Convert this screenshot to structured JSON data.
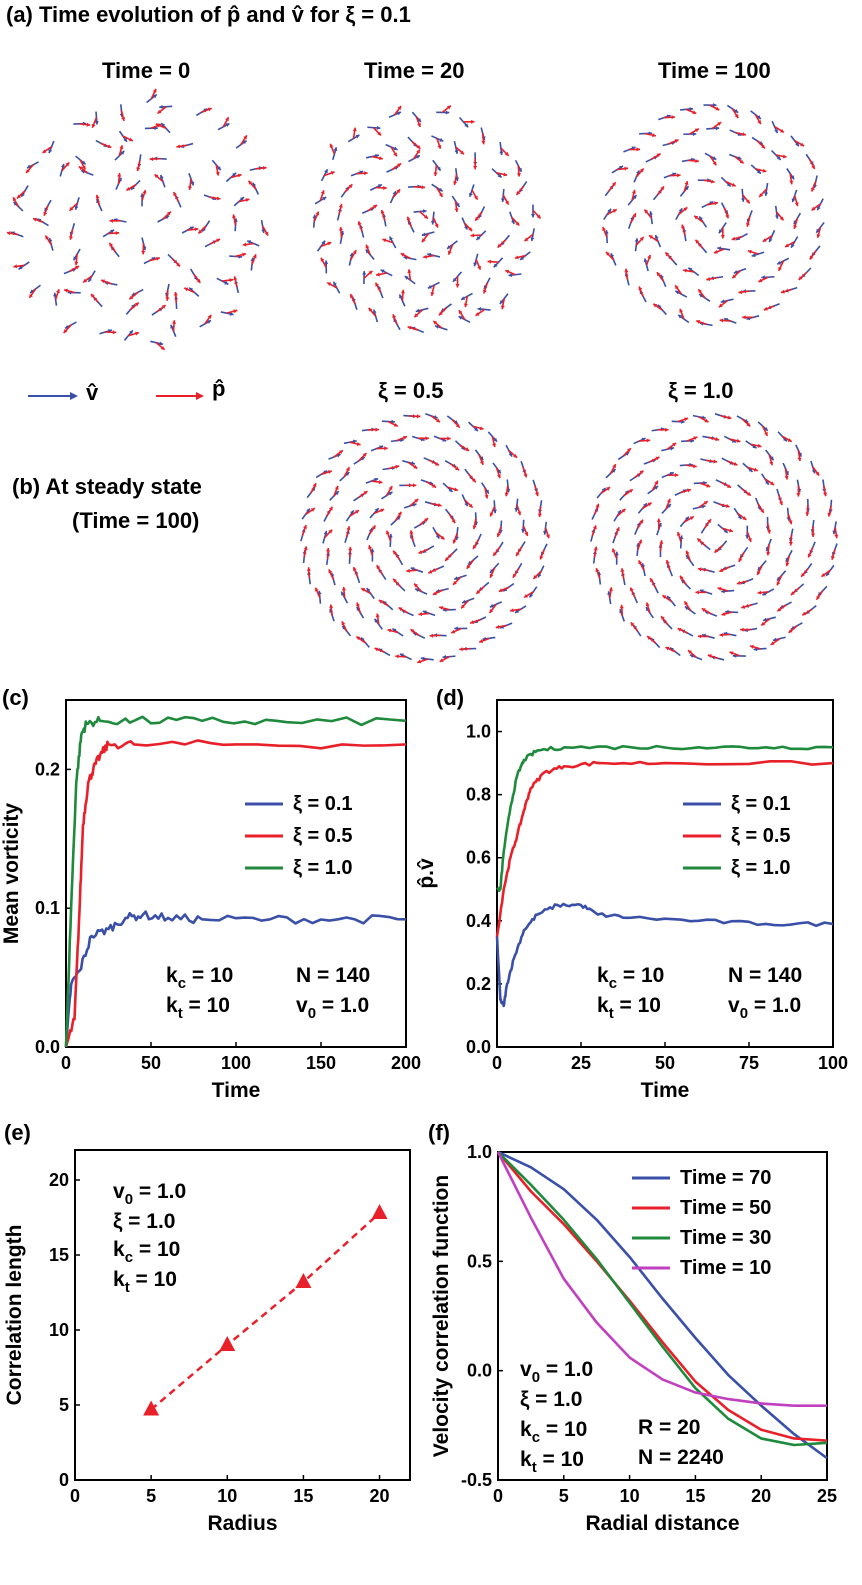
{
  "panel_a": {
    "title": "(a) Time evolution of p̂ and v̂ for ξ = 0.1",
    "times": [
      "Time = 0",
      "Time = 20",
      "Time = 100"
    ]
  },
  "legend_arrows": {
    "v": "v̂",
    "p": "p̂"
  },
  "panel_b": {
    "title_line1": "(b) At steady state",
    "title_line2": "(Time = 100)",
    "xi": [
      "ξ = 0.5",
      "ξ = 1.0"
    ]
  },
  "colors": {
    "blue": "#3a50a8",
    "red": "#e8202a",
    "green": "#1f8a3c",
    "magenta": "#c040c0"
  },
  "chart_data": [
    {
      "panel": "(c)",
      "type": "line",
      "xlabel": "Time",
      "ylabel": "Mean vorticity",
      "xlim": [
        0,
        200
      ],
      "ylim": [
        0,
        0.25
      ],
      "xticks": [
        "0",
        "50",
        "100",
        "150",
        "200"
      ],
      "yticks": [
        "0.0",
        "0.1",
        "0.2"
      ],
      "legend_position": "center-right",
      "series": [
        {
          "name": "ξ = 0.1",
          "color": "#3a50a8",
          "x": [
            0,
            3,
            8,
            15,
            25,
            35,
            45,
            60,
            80,
            120,
            160,
            200
          ],
          "y": [
            0.0,
            0.045,
            0.055,
            0.08,
            0.085,
            0.093,
            0.095,
            0.093,
            0.092,
            0.092,
            0.092,
            0.092
          ]
        },
        {
          "name": "ξ = 0.5",
          "color": "#e8202a",
          "x": [
            0,
            5,
            8,
            10,
            13,
            16,
            20,
            25,
            40,
            100,
            200
          ],
          "y": [
            0.0,
            0.02,
            0.1,
            0.16,
            0.19,
            0.2,
            0.21,
            0.218,
            0.218,
            0.218,
            0.218
          ]
        },
        {
          "name": "ξ = 1.0",
          "color": "#1f8a3c",
          "x": [
            0,
            3,
            6,
            9,
            12,
            20,
            40,
            80,
            130,
            200
          ],
          "y": [
            0.0,
            0.1,
            0.19,
            0.225,
            0.233,
            0.235,
            0.235,
            0.235,
            0.234,
            0.235
          ]
        }
      ],
      "annotations": [
        "k_c = 10",
        "k_t = 10",
        "N = 140",
        "v_0 = 1.0"
      ]
    },
    {
      "panel": "(d)",
      "type": "line",
      "xlabel": "Time",
      "ylabel": "p̂.v̂",
      "xlim": [
        0,
        100
      ],
      "ylim": [
        0,
        1.1
      ],
      "xticks": [
        "0",
        "25",
        "50",
        "75",
        "100"
      ],
      "yticks": [
        "0.0",
        "0.2",
        "0.4",
        "0.6",
        "0.8",
        "1.0"
      ],
      "legend_position": "center-right",
      "series": [
        {
          "name": "ξ = 0.1",
          "color": "#3a50a8",
          "x": [
            0,
            1,
            2,
            3,
            5,
            8,
            12,
            18,
            25,
            30,
            40,
            60,
            80,
            100
          ],
          "y": [
            0.35,
            0.15,
            0.13,
            0.2,
            0.28,
            0.37,
            0.42,
            0.45,
            0.45,
            0.42,
            0.41,
            0.4,
            0.39,
            0.39
          ]
        },
        {
          "name": "ξ = 0.5",
          "color": "#e8202a",
          "x": [
            0,
            2,
            4,
            6,
            8,
            10,
            14,
            20,
            30,
            50,
            100
          ],
          "y": [
            0.35,
            0.5,
            0.6,
            0.67,
            0.75,
            0.82,
            0.87,
            0.89,
            0.9,
            0.9,
            0.9
          ]
        },
        {
          "name": "ξ = 1.0",
          "color": "#1f8a3c",
          "x": [
            0,
            1,
            2,
            4,
            6,
            8,
            12,
            20,
            40,
            60,
            80,
            100
          ],
          "y": [
            0.5,
            0.5,
            0.62,
            0.76,
            0.86,
            0.91,
            0.94,
            0.95,
            0.95,
            0.95,
            0.95,
            0.95
          ]
        }
      ],
      "annotations": [
        "k_c = 10",
        "k_t = 10",
        "N = 140",
        "v_0 = 1.0"
      ]
    },
    {
      "panel": "(e)",
      "type": "scatter",
      "xlabel": "Radius",
      "ylabel": "Correlation length",
      "xlim": [
        0,
        22
      ],
      "ylim": [
        0,
        22
      ],
      "xticks": [
        "0",
        "5",
        "10",
        "15",
        "20"
      ],
      "yticks": [
        "0",
        "5",
        "10",
        "15",
        "20"
      ],
      "series": [
        {
          "color": "#e8202a",
          "x": [
            5,
            10,
            15,
            20
          ],
          "y": [
            4.7,
            9.0,
            13.2,
            17.8
          ]
        }
      ],
      "annotations": [
        "v_0 = 1.0",
        "ξ = 1.0",
        "k_c = 10",
        "k_t = 10"
      ]
    },
    {
      "panel": "(f)",
      "type": "line",
      "xlabel": "Radial distance",
      "ylabel": "Velocity correlation function",
      "xlim": [
        0,
        25
      ],
      "ylim": [
        -0.5,
        1.0
      ],
      "xticks": [
        "0",
        "5",
        "10",
        "15",
        "20",
        "25"
      ],
      "yticks": [
        "-0.5",
        "0.0",
        "0.5",
        "1.0"
      ],
      "legend_position": "top-right",
      "series": [
        {
          "name": "Time = 70",
          "color": "#3a50a8",
          "x": [
            0,
            2.5,
            5,
            7.5,
            10,
            12.5,
            15,
            17.5,
            20,
            22.5,
            25
          ],
          "y": [
            1.0,
            0.93,
            0.83,
            0.69,
            0.52,
            0.33,
            0.15,
            -0.02,
            -0.16,
            -0.29,
            -0.4
          ]
        },
        {
          "name": "Time = 50",
          "color": "#e8202a",
          "x": [
            0,
            2.5,
            5,
            7.5,
            10,
            12.5,
            15,
            17.5,
            20,
            22.5,
            25
          ],
          "y": [
            1.0,
            0.82,
            0.67,
            0.5,
            0.32,
            0.13,
            -0.05,
            -0.18,
            -0.27,
            -0.31,
            -0.32
          ]
        },
        {
          "name": "Time = 30",
          "color": "#1f8a3c",
          "x": [
            0,
            2.5,
            5,
            7.5,
            10,
            12.5,
            15,
            17.5,
            20,
            22.5,
            25
          ],
          "y": [
            1.0,
            0.85,
            0.69,
            0.51,
            0.31,
            0.11,
            -0.08,
            -0.22,
            -0.31,
            -0.34,
            -0.33
          ]
        },
        {
          "name": "Time = 10",
          "color": "#c040c0",
          "x": [
            0,
            2.5,
            5,
            7.5,
            10,
            12.5,
            15,
            17.5,
            20,
            22.5,
            25
          ],
          "y": [
            1.0,
            0.7,
            0.42,
            0.22,
            0.06,
            -0.04,
            -0.1,
            -0.13,
            -0.15,
            -0.16,
            -0.16
          ]
        }
      ],
      "annotations": [
        "v_0 = 1.0",
        "ξ = 1.0",
        "k_c = 10",
        "k_t = 10",
        "R = 20",
        "N = 2240"
      ]
    }
  ]
}
